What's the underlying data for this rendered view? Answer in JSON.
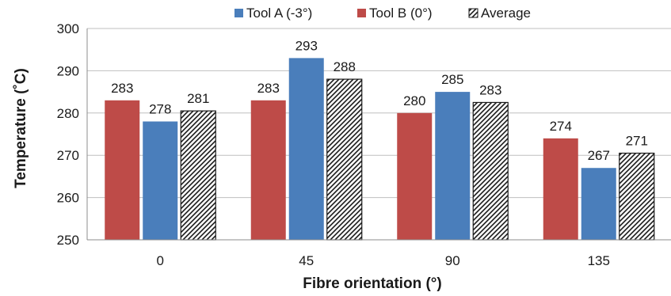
{
  "chart_data": {
    "type": "bar",
    "title": "",
    "xlabel": "Fibre orientation (°)",
    "ylabel": "Temperature (˚C)",
    "categories": [
      "0",
      "45",
      "90",
      "135"
    ],
    "ylim": [
      250,
      300
    ],
    "yticks": [
      "250",
      "260",
      "270",
      "280",
      "290",
      "300"
    ],
    "grid": true,
    "legend_position": "top",
    "series_order_in_group": [
      "Tool B (0°)",
      "Tool A (-3°)",
      "Average"
    ],
    "series": [
      {
        "name": "Tool A (-3°)",
        "color": "#4a7ebb",
        "pattern": "solid",
        "values": [
          278,
          293,
          285,
          267
        ],
        "labels": [
          "278",
          "293",
          "285",
          "267"
        ]
      },
      {
        "name": "Tool B (0°)",
        "color": "#be4b48",
        "pattern": "solid",
        "values": [
          283,
          283,
          280,
          274
        ],
        "labels": [
          "283",
          "283",
          "280",
          "274"
        ]
      },
      {
        "name": "Average",
        "color": "#ffffff",
        "pattern": "diagonal-hatch",
        "values": [
          280.5,
          288,
          282.5,
          270.5
        ],
        "labels": [
          "281",
          "288",
          "283",
          "271"
        ]
      }
    ]
  }
}
